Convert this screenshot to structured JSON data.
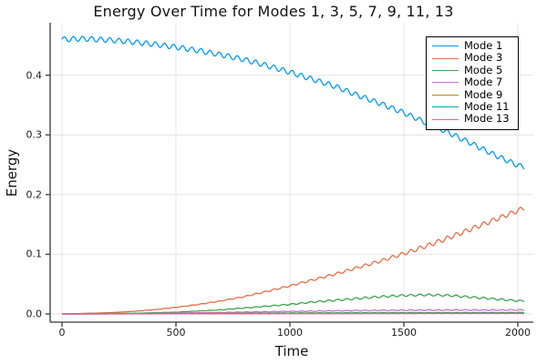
{
  "chart_data": {
    "type": "line",
    "title": "Energy Over Time for Modes 1, 3, 5, 7, 9, 11, 13",
    "xlabel": "Time",
    "ylabel": "Energy",
    "x_ticks": [
      0,
      500,
      1000,
      1500,
      2000
    ],
    "x_tick_labels": [
      "0",
      "500",
      "1000",
      "1500",
      "2000"
    ],
    "y_ticks": [
      0.0,
      0.1,
      0.2,
      0.3,
      0.4
    ],
    "y_tick_labels": [
      "0.0",
      "0.1",
      "0.2",
      "0.3",
      "0.4"
    ],
    "x_range": [
      -52,
      2068
    ],
    "y_range": [
      -0.0137,
      0.4878
    ],
    "t_end": 2030,
    "grid": true,
    "grid_color": "#e4e4e4",
    "spine_color": "#363636",
    "background_color": "#ffffff",
    "legend_position": "top-right",
    "legend_border_color": "#000000",
    "oscillation_period": 40,
    "series": [
      {
        "name": "Mode 1",
        "color": "#009AFA",
        "osc_cap": 0.0042,
        "osc_rel": 0.02,
        "points": [
          [
            0,
            0.46
          ],
          [
            100,
            0.461
          ],
          [
            200,
            0.459
          ],
          [
            300,
            0.456
          ],
          [
            400,
            0.452
          ],
          [
            500,
            0.447
          ],
          [
            600,
            0.441
          ],
          [
            700,
            0.434
          ],
          [
            800,
            0.426
          ],
          [
            900,
            0.416
          ],
          [
            1000,
            0.405
          ],
          [
            1100,
            0.393
          ],
          [
            1200,
            0.381
          ],
          [
            1300,
            0.366
          ],
          [
            1400,
            0.352
          ],
          [
            1500,
            0.337
          ],
          [
            1600,
            0.32
          ],
          [
            1700,
            0.303
          ],
          [
            1800,
            0.285
          ],
          [
            1900,
            0.266
          ],
          [
            2000,
            0.249
          ],
          [
            2030,
            0.246
          ]
        ]
      },
      {
        "name": "Mode 3",
        "color": "#E36E46",
        "osc_cap": 0.0038,
        "osc_rel": 0.03,
        "points": [
          [
            0,
            0.0
          ],
          [
            100,
            0.001
          ],
          [
            200,
            0.002
          ],
          [
            300,
            0.004
          ],
          [
            400,
            0.007
          ],
          [
            500,
            0.011
          ],
          [
            600,
            0.016
          ],
          [
            700,
            0.022
          ],
          [
            800,
            0.029
          ],
          [
            900,
            0.038
          ],
          [
            1000,
            0.047
          ],
          [
            1100,
            0.057
          ],
          [
            1200,
            0.067
          ],
          [
            1300,
            0.078
          ],
          [
            1400,
            0.089
          ],
          [
            1500,
            0.101
          ],
          [
            1600,
            0.114
          ],
          [
            1700,
            0.128
          ],
          [
            1800,
            0.143
          ],
          [
            1900,
            0.158
          ],
          [
            2000,
            0.173
          ],
          [
            2030,
            0.178
          ]
        ]
      },
      {
        "name": "Mode 5",
        "color": "#3DA44D",
        "osc_cap": 0.0016,
        "osc_rel": 0.06,
        "points": [
          [
            0,
            0.0
          ],
          [
            100,
            0.0
          ],
          [
            200,
            0.001
          ],
          [
            300,
            0.001
          ],
          [
            400,
            0.002
          ],
          [
            500,
            0.003
          ],
          [
            600,
            0.005
          ],
          [
            700,
            0.007
          ],
          [
            800,
            0.01
          ],
          [
            900,
            0.013
          ],
          [
            1000,
            0.016
          ],
          [
            1100,
            0.02
          ],
          [
            1200,
            0.023
          ],
          [
            1300,
            0.026
          ],
          [
            1400,
            0.029
          ],
          [
            1500,
            0.031
          ],
          [
            1600,
            0.032
          ],
          [
            1700,
            0.031
          ],
          [
            1800,
            0.028
          ],
          [
            1900,
            0.025
          ],
          [
            2000,
            0.022
          ],
          [
            2030,
            0.022
          ]
        ]
      },
      {
        "name": "Mode 7",
        "color": "#C371D2",
        "osc_cap": 0.0008,
        "osc_rel": 0.12,
        "points": [
          [
            0,
            0.0
          ],
          [
            100,
            0.0
          ],
          [
            200,
            0.0002
          ],
          [
            300,
            0.0005
          ],
          [
            400,
            0.001
          ],
          [
            500,
            0.0015
          ],
          [
            600,
            0.002
          ],
          [
            700,
            0.0026
          ],
          [
            800,
            0.0032
          ],
          [
            900,
            0.0038
          ],
          [
            1000,
            0.0043
          ],
          [
            1100,
            0.0048
          ],
          [
            1200,
            0.0053
          ],
          [
            1300,
            0.0057
          ],
          [
            1400,
            0.006
          ],
          [
            1500,
            0.0062
          ],
          [
            1600,
            0.0064
          ],
          [
            1700,
            0.0065
          ],
          [
            1800,
            0.0066
          ],
          [
            1900,
            0.0066
          ],
          [
            2000,
            0.0067
          ],
          [
            2030,
            0.0067
          ]
        ]
      },
      {
        "name": "Mode 9",
        "color": "#AC8D18",
        "osc_cap": 0.0004,
        "osc_rel": 0.15,
        "points": [
          [
            0,
            0.0
          ],
          [
            100,
            0.0001
          ],
          [
            200,
            0.0002
          ],
          [
            300,
            0.0003
          ],
          [
            400,
            0.0005
          ],
          [
            500,
            0.0007
          ],
          [
            600,
            0.0009
          ],
          [
            700,
            0.0011
          ],
          [
            800,
            0.0013
          ],
          [
            900,
            0.0015
          ],
          [
            1000,
            0.0016
          ],
          [
            1100,
            0.0018
          ],
          [
            1200,
            0.0019
          ],
          [
            1300,
            0.002
          ],
          [
            1400,
            0.0021
          ],
          [
            1500,
            0.0022
          ],
          [
            1600,
            0.0023
          ],
          [
            1700,
            0.0023
          ],
          [
            1800,
            0.0024
          ],
          [
            1900,
            0.0024
          ],
          [
            2000,
            0.0025
          ],
          [
            2030,
            0.0025
          ]
        ]
      },
      {
        "name": "Mode 11",
        "color": "#00A9AD",
        "osc_cap": 0.0003,
        "osc_rel": 0.15,
        "points": [
          [
            0,
            0.0
          ],
          [
            100,
            0.0
          ],
          [
            200,
            0.0001
          ],
          [
            300,
            0.0002
          ],
          [
            400,
            0.0003
          ],
          [
            500,
            0.0004
          ],
          [
            600,
            0.0005
          ],
          [
            700,
            0.0006
          ],
          [
            800,
            0.0008
          ],
          [
            900,
            0.0009
          ],
          [
            1000,
            0.001
          ],
          [
            1100,
            0.0011
          ],
          [
            1200,
            0.0012
          ],
          [
            1300,
            0.0013
          ],
          [
            1400,
            0.0013
          ],
          [
            1500,
            0.0014
          ],
          [
            1600,
            0.0015
          ],
          [
            1700,
            0.0015
          ],
          [
            1800,
            0.0015
          ],
          [
            1900,
            0.0016
          ],
          [
            2000,
            0.0016
          ],
          [
            2030,
            0.0016
          ]
        ]
      },
      {
        "name": "Mode 13",
        "color": "#ED5D92",
        "osc_cap": 0.0003,
        "osc_rel": 0.15,
        "points": [
          [
            0,
            0.0
          ],
          [
            100,
            0.0
          ],
          [
            200,
            0.0
          ],
          [
            300,
            0.0001
          ],
          [
            400,
            0.0001
          ],
          [
            500,
            0.0002
          ],
          [
            600,
            0.0002
          ],
          [
            700,
            0.0003
          ],
          [
            800,
            0.0004
          ],
          [
            900,
            0.0004
          ],
          [
            1000,
            0.0005
          ],
          [
            1100,
            0.0005
          ],
          [
            1200,
            0.0006
          ],
          [
            1300,
            0.0006
          ],
          [
            1400,
            0.0007
          ],
          [
            1500,
            0.0007
          ],
          [
            1600,
            0.0008
          ],
          [
            1700,
            0.0008
          ],
          [
            1800,
            0.0008
          ],
          [
            1900,
            0.0009
          ],
          [
            2000,
            0.0009
          ],
          [
            2030,
            0.0009
          ]
        ]
      }
    ]
  }
}
